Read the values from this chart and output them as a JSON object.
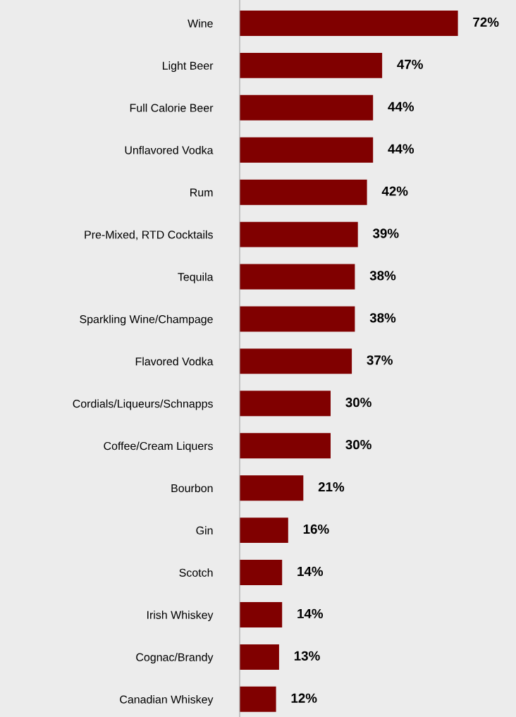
{
  "chart_data": {
    "type": "bar",
    "orientation": "horizontal",
    "data_labels": true,
    "color": "#800000",
    "categories": [
      "Wine",
      "Light Beer",
      "Full Calorie Beer",
      "Unflavored Vodka",
      "Rum",
      "Pre-Mixed, RTD Cocktails",
      "Tequila",
      "Sparkling Wine/Champage",
      "Flavored Vodka",
      "Cordials/Liqueurs/Schnapps",
      "Coffee/Cream Liquers",
      "Bourbon",
      "Gin",
      "Scotch",
      "Irish Whiskey",
      "Cognac/Brandy",
      "Canadian Whiskey"
    ],
    "values": [
      72,
      47,
      44,
      44,
      42,
      39,
      38,
      38,
      37,
      30,
      30,
      21,
      16,
      14,
      14,
      13,
      12
    ],
    "value_labels": [
      "72%",
      "47%",
      "44%",
      "44%",
      "42%",
      "39%",
      "38%",
      "38%",
      "37%",
      "30%",
      "30%",
      "21%",
      "16%",
      "14%",
      "14%",
      "13%",
      "12%"
    ]
  }
}
